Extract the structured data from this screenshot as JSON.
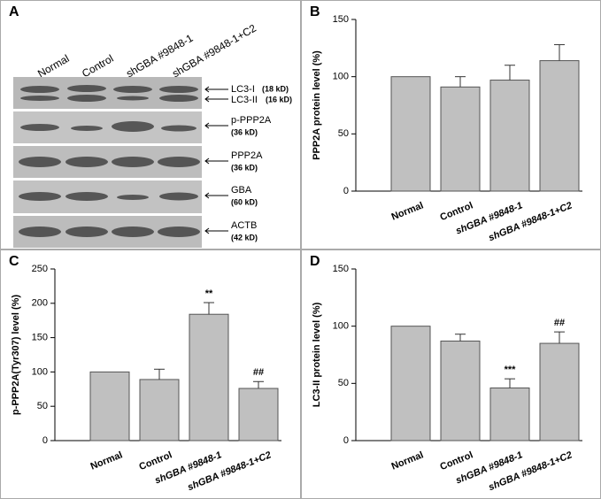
{
  "blot": {
    "panel": "A",
    "lanes": [
      "Normal",
      "Control",
      "shGBA #9848-1",
      "shGBA #9848-1+C2"
    ],
    "bands": [
      {
        "name": "LC3-I",
        "size": "(18 kD)"
      },
      {
        "name": "LC3-II",
        "size": "(16 kD)"
      },
      {
        "name": "p-PPP2A",
        "size": "(36 kD)"
      },
      {
        "name": "PPP2A",
        "size": "(36 kD)"
      },
      {
        "name": "GBA",
        "size": "(60 kD)"
      },
      {
        "name": "ACTB",
        "size": "(42 kD)"
      }
    ]
  },
  "chart_data": [
    {
      "type": "bar",
      "panel": "B",
      "y_label": "PPP2A protein level (%)",
      "categories": [
        "Normal",
        "Control",
        "shGBA #9848-1",
        "shGBA #9848-1+C2"
      ],
      "values": [
        100,
        91,
        97,
        114
      ],
      "errors": [
        0,
        9,
        13,
        14
      ],
      "significance": [
        null,
        null,
        null,
        null
      ],
      "color": "#c0c0c0",
      "ylim": [
        0,
        150
      ],
      "yticks": [
        0,
        50,
        100,
        150
      ]
    },
    {
      "type": "bar",
      "panel": "C",
      "y_label": "p-PPP2A(Tyr307) level (%)",
      "categories": [
        "Normal",
        "Control",
        "shGBA #9848-1",
        "shGBA #9848-1+C2"
      ],
      "values": [
        100,
        89,
        184,
        76
      ],
      "errors": [
        0,
        15,
        17,
        10
      ],
      "significance": [
        null,
        null,
        "**",
        "##"
      ],
      "color": "#c0c0c0",
      "ylim": [
        0,
        250
      ],
      "yticks": [
        0,
        50,
        100,
        150,
        200,
        250
      ]
    },
    {
      "type": "bar",
      "panel": "D",
      "y_label": "LC3-II protein level (%)",
      "categories": [
        "Normal",
        "Control",
        "shGBA #9848-1",
        "shGBA #9848-1+C2"
      ],
      "values": [
        100,
        87,
        46,
        85
      ],
      "errors": [
        0,
        6,
        8,
        10
      ],
      "significance": [
        null,
        null,
        "***",
        "##"
      ],
      "color": "#c0c0c0",
      "ylim": [
        0,
        150
      ],
      "yticks": [
        0,
        50,
        100,
        150
      ]
    }
  ]
}
